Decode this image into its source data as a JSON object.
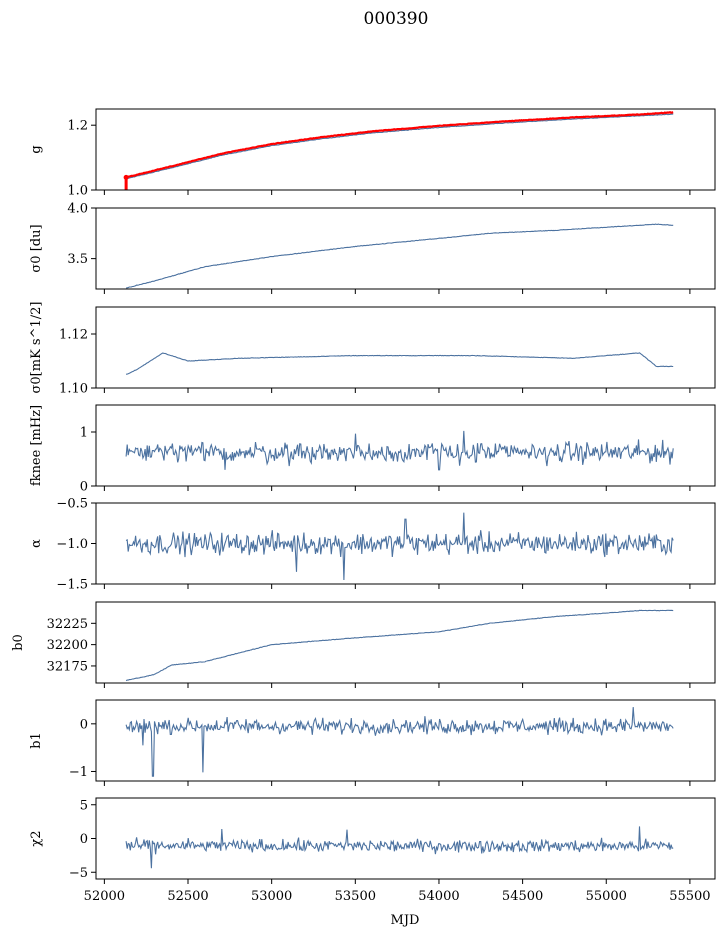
{
  "title": "000390",
  "chart_data": {
    "type": "line",
    "title": "000390",
    "xlabel": "MJD",
    "xlim": [
      51950,
      55650
    ],
    "xticks": [
      52000,
      52500,
      53000,
      53500,
      54000,
      54500,
      55000,
      55500
    ],
    "x_range": [
      52130,
      55400
    ],
    "panels": [
      {
        "id": "g",
        "ylabel": "g",
        "ylim": [
          1.0,
          1.25
        ],
        "yticks": [
          1.0,
          1.2
        ],
        "yticklabels": [
          "1.0",
          "1.2"
        ],
        "series": [
          {
            "name": "g",
            "color": "#4c72a0",
            "kind": "trend",
            "x": [
              52130,
              52400,
              52700,
              53000,
              53300,
              53600,
              54000,
              54400,
              54800,
              55200,
              55400
            ],
            "y": [
              1.035,
              1.068,
              1.107,
              1.137,
              1.158,
              1.176,
              1.193,
              1.207,
              1.219,
              1.229,
              1.234
            ]
          },
          {
            "name": "g reference",
            "color": "#ff0000",
            "kind": "trend",
            "x": [
              52130,
              52400,
              52700,
              53000,
              53300,
              53600,
              54000,
              54400,
              54800,
              55200,
              55400
            ],
            "y": [
              1.039,
              1.073,
              1.112,
              1.142,
              1.163,
              1.181,
              1.198,
              1.212,
              1.224,
              1.233,
              1.24
            ]
          }
        ]
      },
      {
        "id": "sigma0_du",
        "ylabel": "σ0 [du]",
        "ylim": [
          3.2,
          4.0
        ],
        "yticks": [
          3.5,
          4.0
        ],
        "yticklabels": [
          "3.5",
          "4.0"
        ],
        "series": [
          {
            "name": "sigma0 du",
            "color": "#4c72a0",
            "kind": "trend",
            "x": [
              52130,
              52300,
              52600,
              53000,
              53500,
              54000,
              54300,
              54700,
              55000,
              55300,
              55400
            ],
            "y": [
              3.21,
              3.28,
              3.42,
              3.52,
              3.62,
              3.7,
              3.75,
              3.78,
              3.81,
              3.84,
              3.83
            ]
          }
        ]
      },
      {
        "id": "sigma0_mk",
        "ylabel": "σ0[mK s^1/2]",
        "ylim": [
          1.1,
          1.13
        ],
        "yticks": [
          1.1,
          1.12
        ],
        "yticklabels": [
          "1.10",
          "1.12"
        ],
        "series": [
          {
            "name": "sigma0 mK",
            "color": "#4c72a0",
            "kind": "trend",
            "x": [
              52130,
              52200,
              52350,
              52500,
              52800,
              53500,
              54200,
              54800,
              55200,
              55300,
              55400
            ],
            "y": [
              1.105,
              1.107,
              1.113,
              1.11,
              1.111,
              1.112,
              1.112,
              1.111,
              1.113,
              1.108,
              1.108
            ]
          }
        ]
      },
      {
        "id": "fknee",
        "ylabel": "fknee [mHz]",
        "ylim": [
          0,
          1.5
        ],
        "yticks": [
          0,
          1
        ],
        "yticklabels": [
          "0",
          "1"
        ],
        "series": [
          {
            "name": "fknee",
            "color": "#4c72a0",
            "kind": "noise",
            "mean": 0.62,
            "amp": 0.16,
            "spikes": [
              [
                54150,
                1.02
              ],
              [
                53500,
                0.97
              ],
              [
                54000,
                0.3
              ],
              [
                52720,
                0.3
              ]
            ]
          }
        ]
      },
      {
        "id": "alpha",
        "ylabel": "α",
        "ylim": [
          -1.5,
          -0.5
        ],
        "yticks": [
          -1.5,
          -1.0,
          -0.5
        ],
        "yticklabels": [
          "−1.5",
          "−1.0",
          "−0.5"
        ],
        "series": [
          {
            "name": "alpha",
            "color": "#4c72a0",
            "kind": "noise",
            "mean": -1.0,
            "amp": 0.11,
            "spikes": [
              [
                54150,
                -0.62
              ],
              [
                53430,
                -1.45
              ],
              [
                53800,
                -0.7
              ],
              [
                53150,
                -1.35
              ]
            ]
          }
        ]
      },
      {
        "id": "b0",
        "ylabel": "b0",
        "ylim": [
          32155,
          32250
        ],
        "yticks": [
          32175,
          32200,
          32225
        ],
        "yticklabels": [
          "32175",
          "32200",
          "32225"
        ],
        "series": [
          {
            "name": "b0",
            "color": "#4c72a0",
            "kind": "trend",
            "x": [
              52130,
              52300,
              52400,
              52600,
              53000,
              53500,
              54000,
              54300,
              54700,
              55000,
              55200,
              55400
            ],
            "y": [
              32158,
              32165,
              32176,
              32180,
              32200,
              32208,
              32215,
              32225,
              32233,
              32237,
              32240,
              32240
            ]
          }
        ]
      },
      {
        "id": "b1",
        "ylabel": "b1",
        "ylim": [
          -1.2,
          0.5
        ],
        "yticks": [
          -1,
          0
        ],
        "yticklabels": [
          "−1",
          "0"
        ],
        "series": [
          {
            "name": "b1",
            "color": "#4c72a0",
            "kind": "noise",
            "mean": -0.05,
            "amp": 0.13,
            "spikes": [
              [
                52290,
                -1.1
              ],
              [
                52590,
                -1.02
              ],
              [
                52230,
                -0.45
              ],
              [
                55160,
                0.35
              ]
            ]
          }
        ]
      },
      {
        "id": "chi2",
        "ylabel": "χ2",
        "ylim": [
          -6,
          6
        ],
        "yticks": [
          -5,
          0,
          5
        ],
        "yticklabels": [
          "−5",
          "0",
          "5"
        ],
        "series": [
          {
            "name": "chi2",
            "color": "#4c72a0",
            "kind": "noise",
            "mean": -1.1,
            "amp": 0.75,
            "spikes": [
              [
                52280,
                -4.4
              ],
              [
                52700,
                1.4
              ],
              [
                53450,
                1.3
              ],
              [
                55200,
                1.8
              ]
            ]
          }
        ]
      }
    ]
  }
}
